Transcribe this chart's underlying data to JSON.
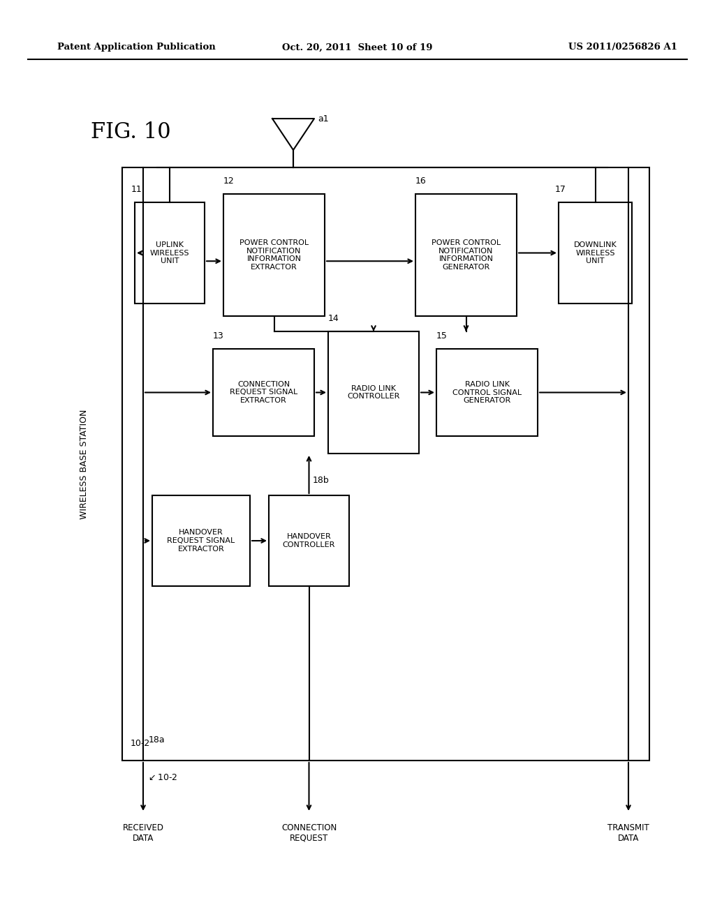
{
  "header_left": "Patent Application Publication",
  "header_mid": "Oct. 20, 2011  Sheet 10 of 19",
  "header_right": "US 2011/0256826 A1",
  "fig_label": "FIG. 10",
  "bg_color": "#ffffff",
  "line_color": "#000000"
}
